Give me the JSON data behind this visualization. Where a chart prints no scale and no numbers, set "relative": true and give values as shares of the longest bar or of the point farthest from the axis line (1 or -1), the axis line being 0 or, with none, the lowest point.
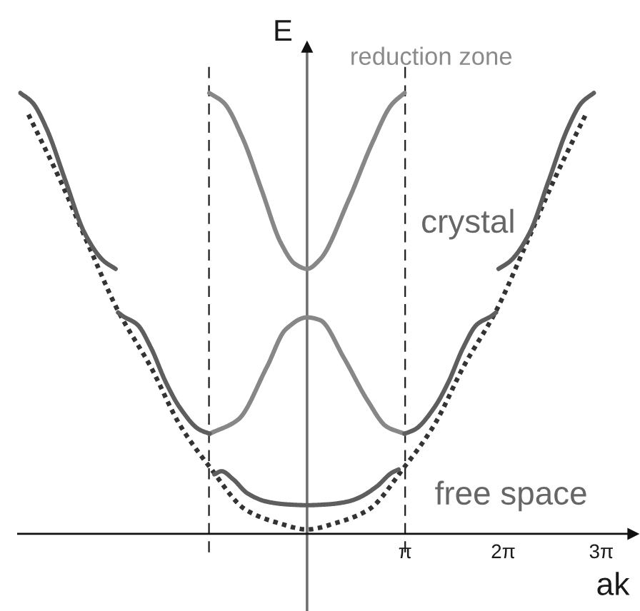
{
  "chart_data": {
    "type": "line",
    "relative": true,
    "xlabel": "ak",
    "ylabel": "E",
    "line_style": "solid",
    "tick_labels": "x",
    "xlim": [
      -9.25,
      10.43
    ],
    "xticks": [
      {
        "value": 3.14,
        "label": "π"
      },
      {
        "value": 6.28,
        "label": "2π"
      },
      {
        "value": 9.42,
        "label": "3π"
      }
    ],
    "ref_lines": [
      {
        "axis": "x",
        "value": -3.14,
        "color": "#1a1a1a",
        "line_style": "dashed"
      },
      {
        "axis": "x",
        "value": 3.14,
        "color": "#1a1a1a",
        "line_style": "dashed"
      }
    ],
    "annotations": [
      "reduction zone",
      "crystal",
      "free space"
    ],
    "series": [
      {
        "color": "#333333",
        "line_style": "dotted",
        "x": [
          -8.92,
          -7.89,
          -6.97,
          -6.06,
          -5.0,
          -4.08,
          -3.11,
          -1.95,
          -0.94,
          0,
          0.94,
          1.95,
          3.11,
          4.08,
          5.0,
          6.06,
          6.97,
          7.89,
          8.92
        ],
        "values": [
          0.951,
          0.8,
          0.65,
          0.507,
          0.378,
          0.248,
          0.151,
          0.054,
          0.025,
          0.01,
          0.025,
          0.054,
          0.151,
          0.248,
          0.378,
          0.507,
          0.65,
          0.8,
          0.951
        ]
      },
      {
        "color": "#5e5e5e",
        "x": [
          -2.97,
          -2.74,
          -2.37,
          -1.91,
          -1.29,
          -0.68,
          0,
          0.68,
          1.29,
          1.63,
          2.24,
          2.7,
          2.93
        ],
        "values": [
          0.135,
          0.142,
          0.124,
          0.092,
          0.073,
          0.067,
          0.065,
          0.067,
          0.073,
          0.081,
          0.108,
          0.138,
          0.146
        ]
      },
      {
        "color": "#878787",
        "x": [
          -3.12,
          -2.21,
          -1.29,
          -0.68,
          0,
          0.41,
          1.18,
          1.94,
          2.55,
          3.12
        ],
        "values": [
          0.227,
          0.259,
          0.378,
          0.464,
          0.491,
          0.485,
          0.399,
          0.302,
          0.243,
          0.227
        ]
      },
      {
        "color": "#878787",
        "x": [
          -3.13,
          -2.67,
          -2.06,
          -1.45,
          -0.84,
          -0.38,
          0,
          0.41,
          1.33,
          2.09,
          2.7,
          3.12
        ],
        "values": [
          1.0,
          0.978,
          0.897,
          0.779,
          0.66,
          0.612,
          0.601,
          0.622,
          0.757,
          0.887,
          0.973,
          1.0
        ]
      },
      {
        "color": "#5e5e5e",
        "x": [
          3.12,
          3.46,
          4.07,
          4.53,
          4.99,
          5.44,
          5.9,
          6.05
        ],
        "values": [
          0.227,
          0.237,
          0.286,
          0.345,
          0.421,
          0.475,
          0.494,
          0.502
        ]
      },
      {
        "color": "#5e5e5e",
        "x": [
          6.13,
          6.51,
          7.12,
          7.73,
          8.34,
          8.79,
          9.18
        ],
        "values": [
          0.601,
          0.619,
          0.682,
          0.8,
          0.919,
          0.978,
          1.0
        ]
      },
      {
        "color": "#5e5e5e",
        "x": [
          -6.05,
          -5.9,
          -5.44,
          -4.99,
          -4.53,
          -4.07,
          -3.46,
          -3.12
        ],
        "values": [
          0.502,
          0.494,
          0.475,
          0.421,
          0.345,
          0.286,
          0.237,
          0.227
        ]
      },
      {
        "color": "#5e5e5e",
        "x": [
          -9.18,
          -8.79,
          -8.34,
          -7.73,
          -7.12,
          -6.51,
          -6.13
        ],
        "values": [
          1.0,
          0.978,
          0.919,
          0.8,
          0.682,
          0.619,
          0.601
        ]
      }
    ]
  }
}
